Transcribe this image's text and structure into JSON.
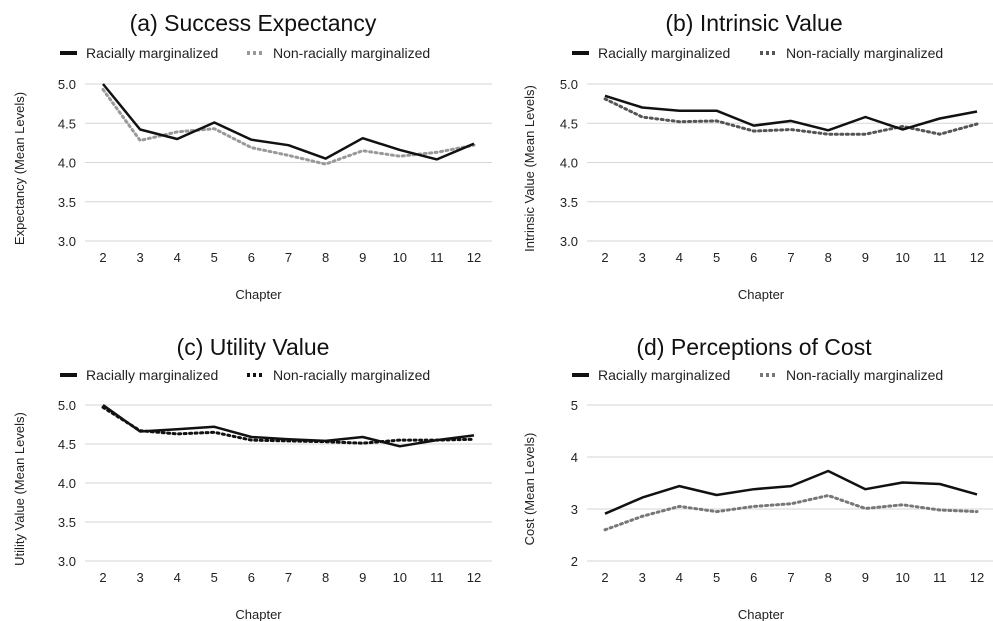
{
  "chart_data": [
    {
      "type": "line",
      "title": "(a) Success Expectancy",
      "xlabel": "Chapter",
      "ylabel": "Expectancy (Mean Levels)",
      "x": [
        "2",
        "3",
        "4",
        "5",
        "6",
        "7",
        "8",
        "9",
        "10",
        "11",
        "12"
      ],
      "ylim": [
        3.0,
        5.0
      ],
      "yticks": [
        "3.0",
        "3.5",
        "4.0",
        "4.5",
        "5.0"
      ],
      "grid": true,
      "legend_position": "top",
      "series": [
        {
          "name": "Racially marginalized",
          "style": "solid",
          "color": "#111111",
          "values": [
            5.0,
            4.42,
            4.3,
            4.51,
            4.29,
            4.22,
            4.05,
            4.31,
            4.16,
            4.04,
            4.24
          ]
        },
        {
          "name": "Non-racially marginalized",
          "style": "dotted",
          "color": "#999999",
          "values": [
            4.93,
            4.28,
            4.39,
            4.43,
            4.19,
            4.09,
            3.98,
            4.15,
            4.08,
            4.13,
            4.22
          ]
        }
      ]
    },
    {
      "type": "line",
      "title": "(b) Intrinsic Value",
      "xlabel": "Chapter",
      "ylabel": "Intrinsic Value (Mean Levels)",
      "x": [
        "2",
        "3",
        "4",
        "5",
        "6",
        "7",
        "8",
        "9",
        "10",
        "11",
        "12"
      ],
      "ylim": [
        3.0,
        5.0
      ],
      "yticks": [
        "3.0",
        "3.5",
        "4.0",
        "4.5",
        "5.0"
      ],
      "grid": true,
      "legend_position": "top",
      "series": [
        {
          "name": "Racially marginalized",
          "style": "solid",
          "color": "#111111",
          "values": [
            4.85,
            4.7,
            4.66,
            4.66,
            4.47,
            4.53,
            4.41,
            4.58,
            4.42,
            4.56,
            4.65
          ]
        },
        {
          "name": "Non-racially marginalized",
          "style": "dotted",
          "color": "#555555",
          "values": [
            4.81,
            4.58,
            4.52,
            4.53,
            4.4,
            4.42,
            4.36,
            4.36,
            4.46,
            4.36,
            4.49
          ]
        }
      ]
    },
    {
      "type": "line",
      "title": "(c) Utility Value",
      "xlabel": "Chapter",
      "ylabel": "Utility Value (Mean Levels)",
      "x": [
        "2",
        "3",
        "4",
        "5",
        "6",
        "7",
        "8",
        "9",
        "10",
        "11",
        "12"
      ],
      "ylim": [
        3.0,
        5.0
      ],
      "yticks": [
        "3.0",
        "3.5",
        "4.0",
        "4.5",
        "5.0"
      ],
      "grid": true,
      "legend_position": "top",
      "series": [
        {
          "name": "Racially marginalized",
          "style": "solid",
          "color": "#111111",
          "values": [
            5.0,
            4.66,
            4.69,
            4.72,
            4.59,
            4.56,
            4.54,
            4.59,
            4.47,
            4.55,
            4.61
          ]
        },
        {
          "name": "Non-racially marginalized",
          "style": "dotted",
          "color": "#111111",
          "values": [
            4.97,
            4.67,
            4.63,
            4.65,
            4.55,
            4.54,
            4.53,
            4.51,
            4.55,
            4.55,
            4.56
          ]
        }
      ]
    },
    {
      "type": "line",
      "title": "(d) Perceptions of Cost",
      "xlabel": "Chapter",
      "ylabel": "Cost (Mean Levels)",
      "x": [
        "2",
        "3",
        "4",
        "5",
        "6",
        "7",
        "8",
        "9",
        "10",
        "11",
        "12"
      ],
      "ylim": [
        2,
        5
      ],
      "yticks": [
        "2",
        "3",
        "4",
        "5"
      ],
      "grid": true,
      "legend_position": "top",
      "series": [
        {
          "name": "Racially marginalized",
          "style": "solid",
          "color": "#111111",
          "values": [
            2.91,
            3.22,
            3.44,
            3.27,
            3.38,
            3.44,
            3.73,
            3.38,
            3.51,
            3.48,
            3.28
          ]
        },
        {
          "name": "Non-racially marginalized",
          "style": "dotted",
          "color": "#777777",
          "values": [
            2.6,
            2.86,
            3.05,
            2.95,
            3.05,
            3.1,
            3.26,
            3.01,
            3.08,
            2.98,
            2.95
          ]
        }
      ]
    }
  ]
}
